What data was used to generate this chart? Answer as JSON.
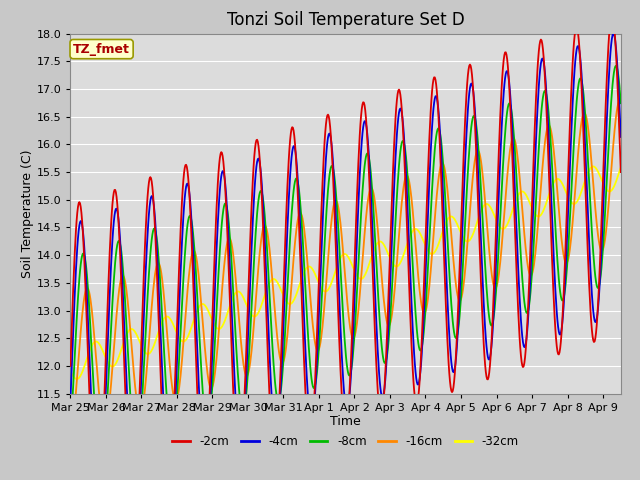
{
  "title": "Tonzi Soil Temperature Set D",
  "xlabel": "Time",
  "ylabel": "Soil Temperature (C)",
  "ylim": [
    11.5,
    18.0
  ],
  "yticks": [
    11.5,
    12.0,
    12.5,
    13.0,
    13.5,
    14.0,
    14.5,
    15.0,
    15.5,
    16.0,
    16.5,
    17.0,
    17.5,
    18.0
  ],
  "x_tick_labels": [
    "Mar 25",
    "Mar 26",
    "Mar 27",
    "Mar 28",
    "Mar 29",
    "Mar 30",
    "Mar 31",
    "Apr 1",
    "Apr 2",
    "Apr 3",
    "Apr 4",
    "Apr 5",
    "Apr 6",
    "Apr 7",
    "Apr 8",
    "Apr 9"
  ],
  "x_tick_positions": [
    0,
    1,
    2,
    3,
    4,
    5,
    6,
    7,
    8,
    9,
    10,
    11,
    12,
    13,
    14,
    15
  ],
  "legend_labels": [
    "-2cm",
    "-4cm",
    "-8cm",
    "-16cm",
    "-32cm"
  ],
  "legend_colors": [
    "#dd0000",
    "#0000dd",
    "#00bb00",
    "#ff8800",
    "#ffff00"
  ],
  "annotation_text": "TZ_fmet",
  "annotation_color": "#aa0000",
  "annotation_bg": "#ffffcc",
  "annotation_border": "#999900",
  "plot_bg": "#dcdcdc",
  "fig_bg": "#c8c8c8",
  "grid_color": "#ffffff",
  "title_fontsize": 12,
  "axis_label_fontsize": 9,
  "tick_fontsize": 8,
  "lw": 1.3,
  "amp_2cm": 2.9,
  "amp_4cm": 2.55,
  "amp_8cm": 1.95,
  "amp_16cm": 1.3,
  "amp_32cm": 0.28,
  "lag_2cm": 0.0,
  "lag_4cm": 0.04,
  "lag_8cm": 0.11,
  "lag_16cm": 0.22,
  "lag_32cm": 0.45,
  "base_start": 12.0,
  "base_end": 15.5,
  "xlim": [
    0,
    15.5
  ],
  "n_days": 15.5,
  "n_points": 800
}
